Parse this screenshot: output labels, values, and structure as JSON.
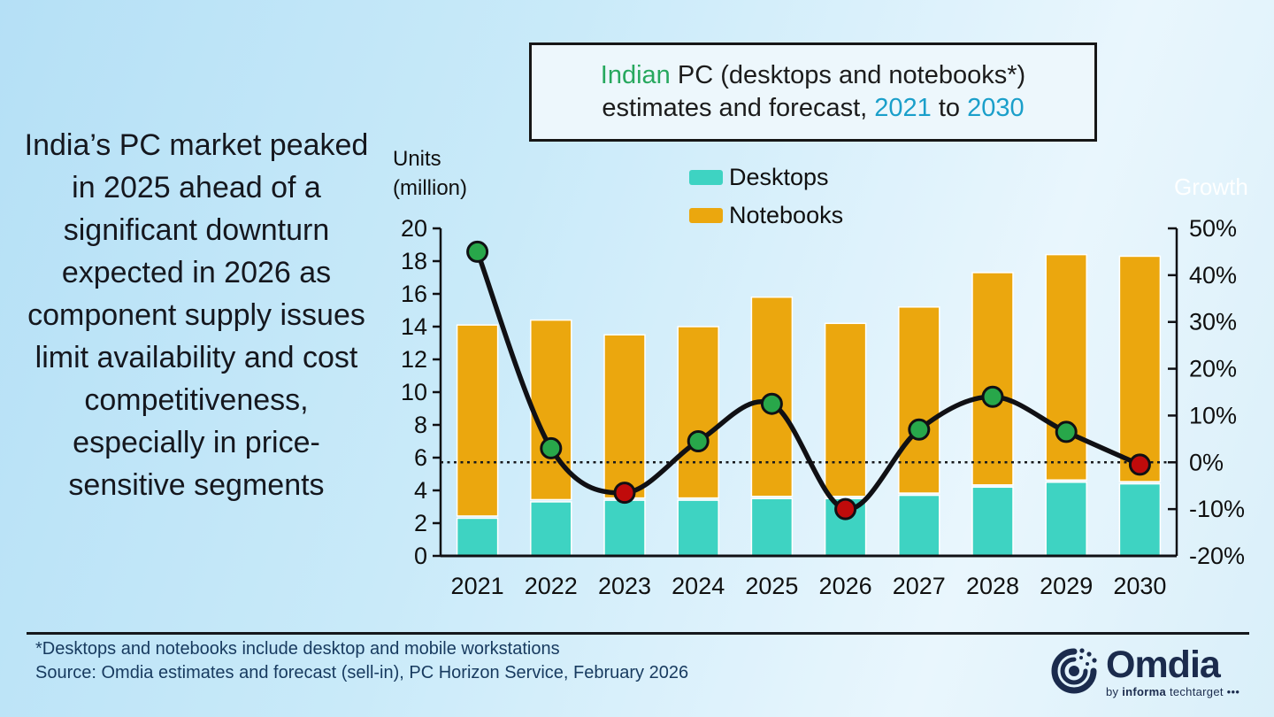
{
  "headline": "India’s PC market peaked in 2025 ahead of a significant downturn expected in 2026 as component supply issues limit availability and cost competitiveness, especially in price-sensitive segments",
  "title_box": {
    "line1_highlight": "Indian",
    "line1_rest": " PC (desktops and notebooks*)",
    "line2_prefix": "estimates and forecast, ",
    "year_start": "2021",
    "line2_mid": " to ",
    "year_end": "2030",
    "highlight_color": "#27a85e",
    "year_color": "#1a9fca"
  },
  "axis_left_title_line1": "Units",
  "axis_left_title_line2": "(million)",
  "axis_right_title": "Growth",
  "legend": [
    {
      "label": "Desktops",
      "color": "#3ed3c2"
    },
    {
      "label": "Notebooks",
      "color": "#eba70e"
    }
  ],
  "chart_data": {
    "type": "bar",
    "subtype": "stacked-bar-with-secondary-axis-line",
    "title": "Indian PC (desktops and notebooks*) estimates and forecast, 2021 to 2030",
    "categories": [
      "2021",
      "2022",
      "2023",
      "2024",
      "2025",
      "2026",
      "2027",
      "2028",
      "2029",
      "2030"
    ],
    "series": [
      {
        "name": "Desktops",
        "type": "bar",
        "stack": "units",
        "color": "#3ed3c2",
        "values": [
          2.3,
          3.3,
          3.4,
          3.4,
          3.5,
          3.5,
          3.7,
          4.2,
          4.5,
          4.4
        ]
      },
      {
        "name": "Notebooks",
        "type": "bar",
        "stack": "units",
        "color": "#eba70e",
        "values": [
          11.8,
          11.1,
          10.1,
          10.6,
          12.3,
          10.7,
          11.5,
          13.1,
          13.9,
          13.9
        ]
      },
      {
        "name": "Growth",
        "type": "line",
        "axis": "right",
        "color": "#101014",
        "values": [
          45,
          3,
          -6.5,
          4.5,
          12.5,
          -10,
          7,
          14,
          6.5,
          -0.5
        ],
        "point_color_positive": "#28a74a",
        "point_color_negative": "#c00b0b"
      }
    ],
    "left_axis": {
      "label": "Units (million)",
      "min": 0,
      "max": 20,
      "step": 2
    },
    "right_axis": {
      "label": "Growth",
      "min": -20,
      "max": 50,
      "step": 10,
      "suffix": "%"
    },
    "zero_growth_line_dotted": true,
    "legend_position": "top-center",
    "grid": false
  },
  "footer": {
    "note": "*Desktops and notebooks include desktop and mobile workstations",
    "source": "Source: Omdia estimates and forecast (sell-in), PC Horizon Service, February 2026"
  },
  "logo": {
    "word": "Omdia",
    "tagline_by": "by ",
    "tagline_informa": "informa",
    "tagline_rest": " techtarget",
    "tagline_dots": " •••"
  }
}
